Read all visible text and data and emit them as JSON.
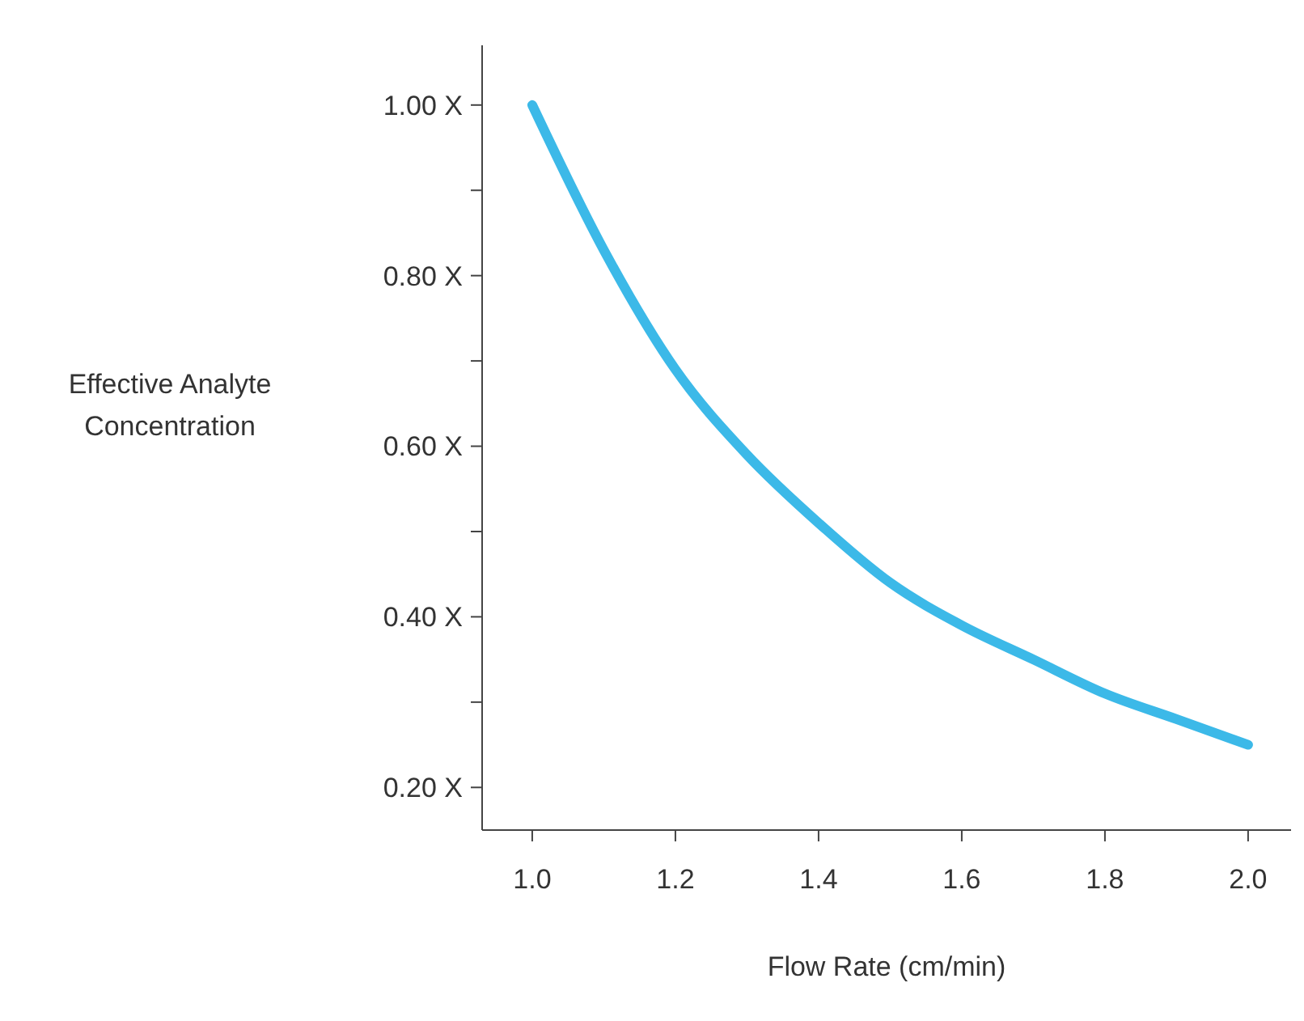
{
  "chart_data": {
    "type": "line",
    "xlabel": "Flow Rate (cm/min)",
    "ylabel": "Effective Analyte Concentration",
    "x": [
      1.0,
      1.1,
      1.2,
      1.3,
      1.4,
      1.5,
      1.6,
      1.7,
      1.8,
      1.9,
      2.0
    ],
    "series": [
      {
        "color": "#3cb9e8",
        "values": [
          1.0,
          0.83,
          0.69,
          0.59,
          0.51,
          0.44,
          0.39,
          0.35,
          0.31,
          0.28,
          0.25
        ]
      }
    ],
    "xlim": [
      0.93,
      2.06
    ],
    "ylim": [
      0.15,
      1.07
    ],
    "xticks": [
      {
        "value": 1.0,
        "label": "1.0"
      },
      {
        "value": 1.2,
        "label": "1.2"
      },
      {
        "value": 1.4,
        "label": "1.4"
      },
      {
        "value": 1.6,
        "label": "1.6"
      },
      {
        "value": 1.8,
        "label": "1.8"
      },
      {
        "value": 2.0,
        "label": "2.0"
      }
    ],
    "yticks": [
      {
        "value": 0.2,
        "label": "0.20 X"
      },
      {
        "value": 0.3,
        "label": null
      },
      {
        "value": 0.4,
        "label": "0.40 X"
      },
      {
        "value": 0.5,
        "label": null
      },
      {
        "value": 0.6,
        "label": "0.60 X"
      },
      {
        "value": 0.7,
        "label": null
      },
      {
        "value": 0.8,
        "label": "0.80 X"
      },
      {
        "value": 0.9,
        "label": null
      },
      {
        "value": 1.0,
        "label": "1.00 X"
      }
    ],
    "grid": false,
    "marker": "none",
    "line_style": "solid"
  }
}
